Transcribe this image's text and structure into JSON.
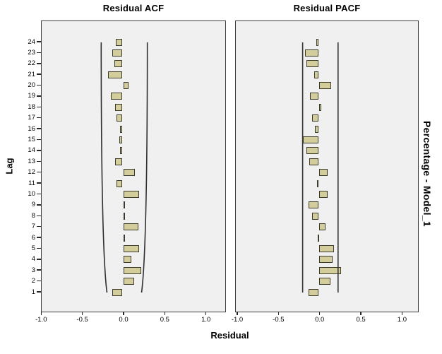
{
  "titles": {
    "acf": "Residual ACF",
    "pacf": "Residual PACF"
  },
  "axis": {
    "y_label": "Lag",
    "x_label": "Residual",
    "right_label": "Percentage - Model_1",
    "x_tick_labels": [
      "-1.0",
      "-0.5",
      "0.0",
      "0.5",
      "1.0"
    ],
    "x_tick_values": [
      -1.0,
      -0.5,
      0.0,
      0.5,
      1.0
    ],
    "y_tick_labels_top_to_bottom": [
      24,
      23,
      22,
      21,
      20,
      19,
      18,
      17,
      16,
      15,
      14,
      13,
      12,
      11,
      10,
      9,
      8,
      7,
      6,
      5,
      4,
      3,
      2,
      1
    ]
  },
  "colors": {
    "bar_fill": "#d3cd9b",
    "bar_border": "#3d3b2b",
    "plot_background": "#f0f0f0",
    "plot_border": "#3e3e3e",
    "confidence_line": "#303030",
    "background": "#ffffff"
  },
  "chart_data": [
    {
      "type": "bar",
      "orientation": "horizontal",
      "title": "Residual ACF",
      "xlabel": "Residual",
      "ylabel": "Lag",
      "xlim": [
        -1.05,
        1.2
      ],
      "x_ticks": [
        -1.0,
        -0.5,
        0.0,
        0.5,
        1.0
      ],
      "lags": [
        1,
        2,
        3,
        4,
        5,
        6,
        7,
        8,
        9,
        10,
        11,
        12,
        13,
        14,
        15,
        16,
        17,
        18,
        19,
        20,
        21,
        22,
        23,
        24
      ],
      "values": [
        -0.13,
        0.14,
        0.23,
        0.11,
        0.2,
        0.02,
        0.19,
        0.0,
        0.0,
        0.2,
        -0.08,
        0.15,
        -0.1,
        -0.04,
        -0.05,
        -0.04,
        -0.08,
        -0.1,
        -0.15,
        0.07,
        -0.18,
        -0.11,
        -0.13,
        -0.09
      ],
      "confidence_bounds": {
        "shape": "curved",
        "limit_at_lag1": 0.21,
        "limit_at_lag24": 0.28
      },
      "zero_line": "dashed",
      "grid": false,
      "legend": false
    },
    {
      "type": "bar",
      "orientation": "horizontal",
      "title": "Residual PACF",
      "xlabel": "Residual",
      "ylabel": "Lag",
      "xlim": [
        -1.05,
        1.2
      ],
      "x_ticks": [
        -1.0,
        -0.5,
        0.0,
        0.5,
        1.0
      ],
      "lags": [
        1,
        2,
        3,
        4,
        5,
        6,
        7,
        8,
        9,
        10,
        11,
        12,
        13,
        14,
        15,
        16,
        17,
        18,
        19,
        20,
        21,
        22,
        23,
        24
      ],
      "values": [
        -0.13,
        0.14,
        0.27,
        0.17,
        0.19,
        -0.02,
        0.08,
        -0.09,
        -0.13,
        0.11,
        -0.03,
        0.11,
        -0.12,
        -0.16,
        -0.2,
        -0.05,
        -0.09,
        0.03,
        -0.11,
        0.15,
        -0.06,
        -0.16,
        -0.17,
        -0.04
      ],
      "confidence_bounds": {
        "shape": "straight",
        "limit": 0.215
      },
      "zero_line": "dashed",
      "grid": false,
      "legend": false
    }
  ]
}
